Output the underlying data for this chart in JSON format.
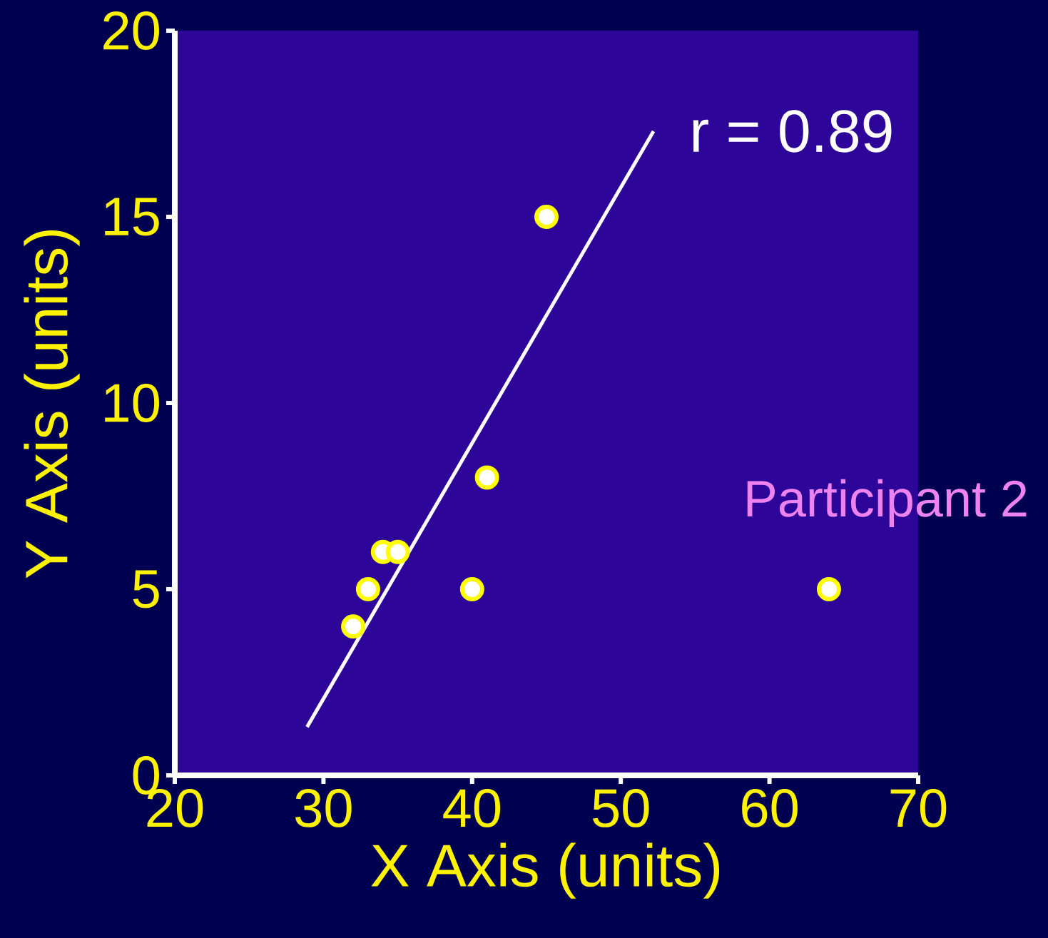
{
  "chart_data": {
    "type": "scatter",
    "xlabel": "X Axis (units)",
    "ylabel": "Y Axis (units)",
    "xlim": [
      20,
      70
    ],
    "ylim": [
      0,
      20
    ],
    "xticks": [
      20,
      30,
      40,
      50,
      60,
      70
    ],
    "yticks": [
      0,
      5,
      10,
      15,
      20
    ],
    "annotations": [
      "r = 0.89",
      {
        "text": "Participant 2",
        "x": 64,
        "y": 5
      }
    ],
    "series": [
      {
        "color": "#ffff00",
        "marker": "circle",
        "x": [
          32,
          33,
          34,
          35,
          40,
          41,
          45,
          64
        ],
        "values": [
          4,
          5,
          6,
          6,
          5,
          8,
          15,
          5
        ]
      },
      {
        "type": "line",
        "color": "#ffffff",
        "marker": "none",
        "line_style": "solid",
        "x": [
          28.9,
          52.2
        ],
        "values": [
          1.3,
          17.3
        ]
      }
    ]
  }
}
